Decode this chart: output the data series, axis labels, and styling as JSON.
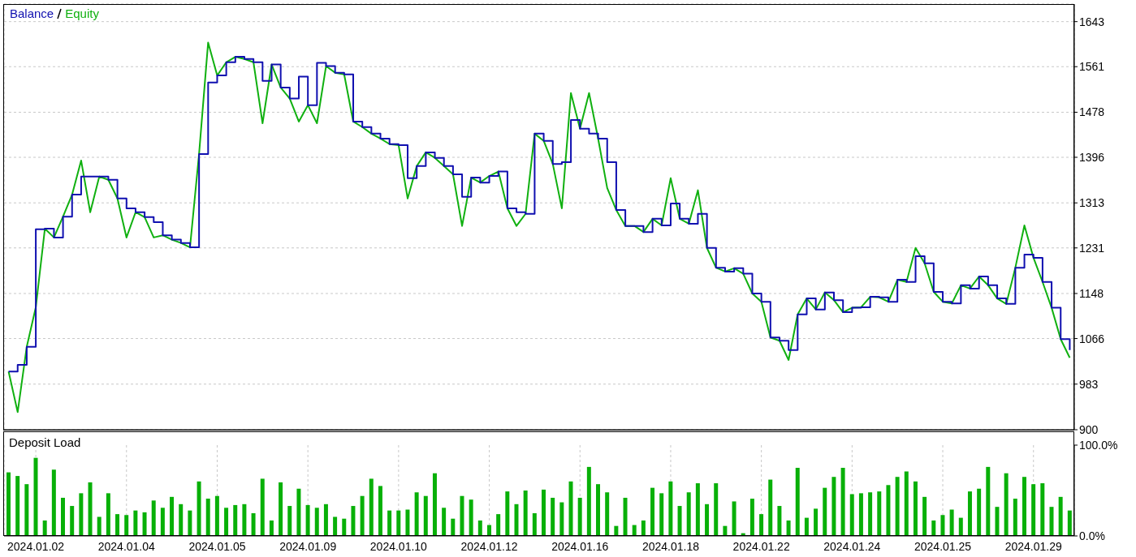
{
  "chart_data": [
    {
      "type": "line",
      "legend": "top left",
      "grid": true,
      "marker": "none",
      "tick_labels": "y",
      "categories": [
        null,
        null,
        null,
        "2024.01.02",
        null,
        null,
        null,
        null,
        null,
        null,
        null,
        null,
        null,
        "2024.01.04",
        null,
        null,
        null,
        null,
        null,
        null,
        null,
        null,
        null,
        "2024.01.05",
        null,
        null,
        null,
        null,
        null,
        null,
        null,
        null,
        null,
        "2024.01.09",
        null,
        null,
        null,
        null,
        null,
        null,
        null,
        null,
        null,
        "2024.01.10",
        null,
        null,
        null,
        null,
        null,
        null,
        null,
        null,
        null,
        "2024.01.12",
        null,
        null,
        null,
        null,
        null,
        null,
        null,
        null,
        null,
        "2024.01.16",
        null,
        null,
        null,
        null,
        null,
        null,
        null,
        null,
        null,
        "2024.01.18",
        null,
        null,
        null,
        null,
        null,
        null,
        null,
        null,
        null,
        "2024.01.22",
        null,
        null,
        null,
        null,
        null,
        null,
        null,
        null,
        null,
        "2024.01.24",
        null,
        null,
        null,
        null,
        null,
        null,
        null,
        null,
        null,
        "2024.01.25",
        null,
        null,
        null,
        null,
        null,
        null,
        null,
        null,
        null,
        "2024.01.29",
        null,
        null,
        null,
        null
      ],
      "ylim": [
        900,
        1675
      ],
      "yticks": [
        900,
        983,
        1066,
        1148,
        1231,
        1313,
        1396,
        1478,
        1561,
        1643
      ],
      "series": [
        {
          "name": "Balance",
          "type": "step",
          "color": "#1010b0",
          "values": [
            1006,
            1018,
            1051,
            1265,
            1266,
            1250,
            1288,
            1328,
            1361,
            1361,
            1361,
            1355,
            1321,
            1303,
            1296,
            1287,
            1278,
            1254,
            1246,
            1240,
            1232,
            1402,
            1532,
            1545,
            1569,
            1579,
            1575,
            1569,
            1535,
            1565,
            1523,
            1503,
            1543,
            1491,
            1568,
            1562,
            1550,
            1547,
            1461,
            1451,
            1439,
            1430,
            1420,
            1418,
            1358,
            1380,
            1405,
            1395,
            1380,
            1365,
            1324,
            1359,
            1350,
            1362,
            1370,
            1303,
            1296,
            1293,
            1439,
            1426,
            1384,
            1387,
            1464,
            1448,
            1439,
            1430,
            1387,
            1300,
            1271,
            1271,
            1260,
            1284,
            1272,
            1312,
            1284,
            1275,
            1293,
            1231,
            1195,
            1188,
            1194,
            1184,
            1148,
            1133,
            1068,
            1062,
            1045,
            1110,
            1139,
            1119,
            1150,
            1136,
            1114,
            1122,
            1123,
            1142,
            1141,
            1133,
            1173,
            1169,
            1216,
            1203,
            1151,
            1133,
            1130,
            1163,
            1157,
            1179,
            1163,
            1139,
            1129,
            1195,
            1219,
            1213,
            1169,
            1122,
            1065,
            1045
          ]
        },
        {
          "name": "Equity",
          "type": "line",
          "color": "#10b010",
          "values": [
            1006,
            932,
            1051,
            1123,
            1266,
            1250,
            1288,
            1328,
            1390,
            1296,
            1361,
            1355,
            1321,
            1250,
            1296,
            1287,
            1250,
            1254,
            1246,
            1240,
            1232,
            1402,
            1605,
            1545,
            1569,
            1579,
            1575,
            1569,
            1458,
            1565,
            1523,
            1503,
            1461,
            1491,
            1458,
            1562,
            1550,
            1547,
            1461,
            1451,
            1439,
            1430,
            1420,
            1418,
            1321,
            1380,
            1405,
            1395,
            1380,
            1365,
            1271,
            1359,
            1350,
            1362,
            1370,
            1303,
            1271,
            1293,
            1439,
            1426,
            1384,
            1303,
            1513,
            1448,
            1513,
            1430,
            1340,
            1300,
            1271,
            1271,
            1260,
            1284,
            1272,
            1358,
            1284,
            1275,
            1336,
            1231,
            1195,
            1188,
            1194,
            1184,
            1148,
            1133,
            1068,
            1062,
            1027,
            1110,
            1139,
            1119,
            1150,
            1136,
            1114,
            1122,
            1123,
            1142,
            1141,
            1133,
            1173,
            1169,
            1231,
            1203,
            1151,
            1133,
            1130,
            1163,
            1157,
            1179,
            1163,
            1139,
            1129,
            1195,
            1272,
            1213,
            1169,
            1122,
            1065,
            1031
          ]
        }
      ]
    },
    {
      "type": "bar",
      "title": "Deposit Load",
      "grid": "x",
      "color": "#08b008",
      "categories": [
        null,
        null,
        null,
        "2024.01.02",
        null,
        null,
        null,
        null,
        null,
        null,
        null,
        null,
        null,
        "2024.01.04",
        null,
        null,
        null,
        null,
        null,
        null,
        null,
        null,
        null,
        "2024.01.05",
        null,
        null,
        null,
        null,
        null,
        null,
        null,
        null,
        null,
        "2024.01.09",
        null,
        null,
        null,
        null,
        null,
        null,
        null,
        null,
        null,
        "2024.01.10",
        null,
        null,
        null,
        null,
        null,
        null,
        null,
        null,
        null,
        "2024.01.12",
        null,
        null,
        null,
        null,
        null,
        null,
        null,
        null,
        null,
        "2024.01.16",
        null,
        null,
        null,
        null,
        null,
        null,
        null,
        null,
        null,
        "2024.01.18",
        null,
        null,
        null,
        null,
        null,
        null,
        null,
        null,
        null,
        "2024.01.22",
        null,
        null,
        null,
        null,
        null,
        null,
        null,
        null,
        null,
        "2024.01.24",
        null,
        null,
        null,
        null,
        null,
        null,
        null,
        null,
        null,
        "2024.01.25",
        null,
        null,
        null,
        null,
        null,
        null,
        null,
        null,
        null,
        "2024.01.29",
        null,
        null,
        null,
        null
      ],
      "ylim": [
        0,
        100
      ],
      "yticks": [
        {
          "value": 0,
          "label": "0.0%"
        },
        {
          "value": 100,
          "label": "100.0%"
        }
      ],
      "values": [
        70,
        66,
        57,
        86,
        17,
        73,
        42,
        33,
        47,
        59,
        21,
        47,
        24,
        23,
        28,
        26,
        39,
        31,
        43,
        35,
        28,
        60,
        41,
        44,
        31,
        34,
        35,
        25,
        63,
        17,
        59,
        33,
        52,
        34,
        31,
        35,
        21,
        19,
        33,
        44,
        63,
        55,
        28,
        28,
        29,
        48,
        44,
        69,
        31,
        19,
        44,
        40,
        17,
        12,
        24,
        49,
        35,
        50,
        25,
        51,
        42,
        37,
        60,
        42,
        76,
        57,
        48,
        11,
        42,
        12,
        17,
        53,
        47,
        60,
        33,
        48,
        58,
        35,
        58,
        11,
        38,
        3,
        41,
        24,
        62,
        33,
        17,
        75,
        20,
        30,
        53,
        65,
        75,
        46,
        47,
        48,
        49,
        56,
        65,
        71,
        60,
        43,
        17,
        23,
        29,
        20,
        49,
        52,
        76,
        32,
        69,
        41,
        65,
        57,
        58,
        32,
        43,
        28
      ]
    }
  ]
}
